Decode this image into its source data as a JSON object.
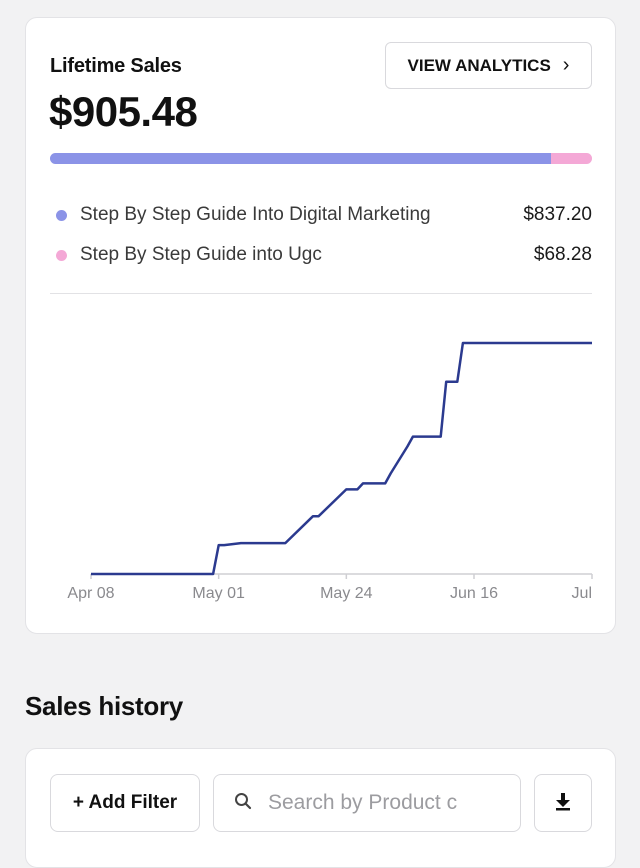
{
  "summary": {
    "title": "Lifetime Sales",
    "amount": "$905.48",
    "analytics_button": "VIEW ANALYTICS",
    "bar_split": [
      837.2,
      68.28
    ],
    "products": [
      {
        "name": "Step By Step Guide Into Digital Marketing",
        "value": "$837.20",
        "color": "#8b93e7"
      },
      {
        "name": "Step By Step Guide into Ugc",
        "value": "$68.28",
        "color": "#f4a8d6"
      }
    ]
  },
  "chart_data": {
    "type": "line",
    "color": "#2b3a8f",
    "xlabels": [
      "Apr 08",
      "May 01",
      "May 24",
      "Jun 16",
      "Jul"
    ],
    "x": [
      "2024-04-08",
      "2024-04-30",
      "2024-05-01",
      "2024-05-02",
      "2024-05-05",
      "2024-05-06",
      "2024-05-12",
      "2024-05-13",
      "2024-05-18",
      "2024-05-19",
      "2024-05-24",
      "2024-05-26",
      "2024-05-27",
      "2024-05-31",
      "2024-06-01",
      "2024-06-04",
      "2024-06-05",
      "2024-06-10",
      "2024-06-11",
      "2024-06-13",
      "2024-06-14",
      "2024-06-16",
      "2024-07-09"
    ],
    "y": [
      0,
      0,
      29,
      29,
      31,
      31,
      31,
      31,
      58,
      58,
      85,
      85,
      91,
      91,
      101,
      128,
      138,
      138,
      193,
      193,
      232,
      232,
      232
    ],
    "ylim": [
      0,
      240
    ]
  },
  "history": {
    "title": "Sales history",
    "add_filter": "+ Add Filter",
    "search_placeholder": "Search by Product c"
  }
}
